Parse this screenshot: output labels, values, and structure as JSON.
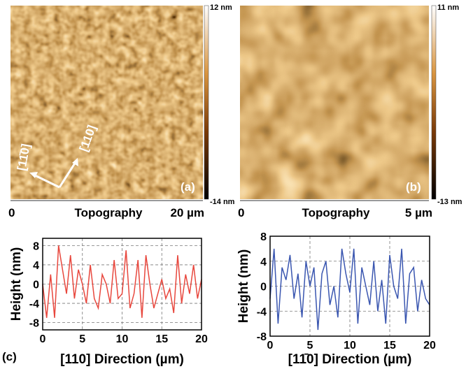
{
  "images": [
    {
      "scale_max": "12 nm",
      "scale_min": "-14 nm",
      "panel": "(a)",
      "x_start": "0",
      "x_label": "Topography",
      "x_end": "20 µm",
      "direction_1": "[11̄0]",
      "direction_2": "[110]"
    },
    {
      "scale_max": "11 nm",
      "scale_min": "-13 nm",
      "panel": "(b)",
      "x_start": "0",
      "x_label": "Topography",
      "x_end": "5 µm"
    }
  ],
  "panel_c": "(c)",
  "chart_data": [
    {
      "type": "line",
      "xlabel": "[110] Direction (µm)",
      "ylabel": "Height (nm)",
      "color": "#e8473d",
      "x": [
        0,
        0.5,
        1,
        1.5,
        2,
        2.5,
        3,
        3.5,
        4,
        4.5,
        5,
        5.5,
        6,
        6.5,
        7,
        7.5,
        8,
        8.5,
        9,
        9.5,
        10,
        10.5,
        11,
        11.5,
        12,
        12.5,
        13,
        13.5,
        14,
        14.5,
        15,
        15.5,
        16,
        16.5,
        17,
        17.5,
        18,
        18.5,
        19,
        19.5,
        20
      ],
      "values": [
        0,
        -7,
        2,
        -7,
        8,
        3,
        -2,
        6,
        -3,
        3,
        0,
        -4,
        4,
        -3,
        -5,
        2,
        0,
        -4,
        5,
        -3,
        -2,
        7,
        -5,
        -2,
        5,
        -7,
        6,
        0,
        -5,
        -2,
        1,
        -3,
        -1,
        -6,
        6,
        -4,
        2,
        -2,
        4,
        -3,
        1
      ],
      "xlim": [
        0,
        20
      ],
      "ylim": [
        -9.5,
        9.5
      ],
      "xticks": [
        0,
        5,
        10,
        15,
        20
      ],
      "yticks": [
        -8,
        -4,
        0,
        4,
        8
      ],
      "grid": true
    },
    {
      "type": "line",
      "xlabel": "[11̄0] Direction (µm)",
      "ylabel": "Height (nm)",
      "color": "#3a56b0",
      "x": [
        0,
        0.5,
        1,
        1.5,
        2,
        2.5,
        3,
        3.5,
        4,
        4.5,
        5,
        5.5,
        6,
        6.5,
        7,
        7.5,
        8,
        8.5,
        9,
        9.5,
        10,
        10.5,
        11,
        11.5,
        12,
        12.5,
        13,
        13.5,
        14,
        14.5,
        15,
        15.5,
        16,
        16.5,
        17,
        17.5,
        18,
        18.5,
        19,
        19.5,
        20
      ],
      "values": [
        -2,
        6,
        -6,
        3,
        1,
        5,
        -2,
        2,
        -5,
        4,
        0,
        3,
        -7,
        2,
        4,
        -3,
        0,
        -5,
        6,
        2,
        -1,
        6,
        -6,
        3,
        0,
        -3,
        4,
        -4,
        1,
        -6,
        5,
        0,
        -2,
        6,
        -6,
        2,
        3,
        -4,
        1,
        -2,
        -3
      ],
      "xlim": [
        0,
        20
      ],
      "ylim": [
        -8,
        8
      ],
      "xticks": [
        0,
        5,
        10,
        15,
        20
      ],
      "yticks": [
        -8,
        -4,
        0,
        4,
        8
      ],
      "grid": true
    }
  ]
}
